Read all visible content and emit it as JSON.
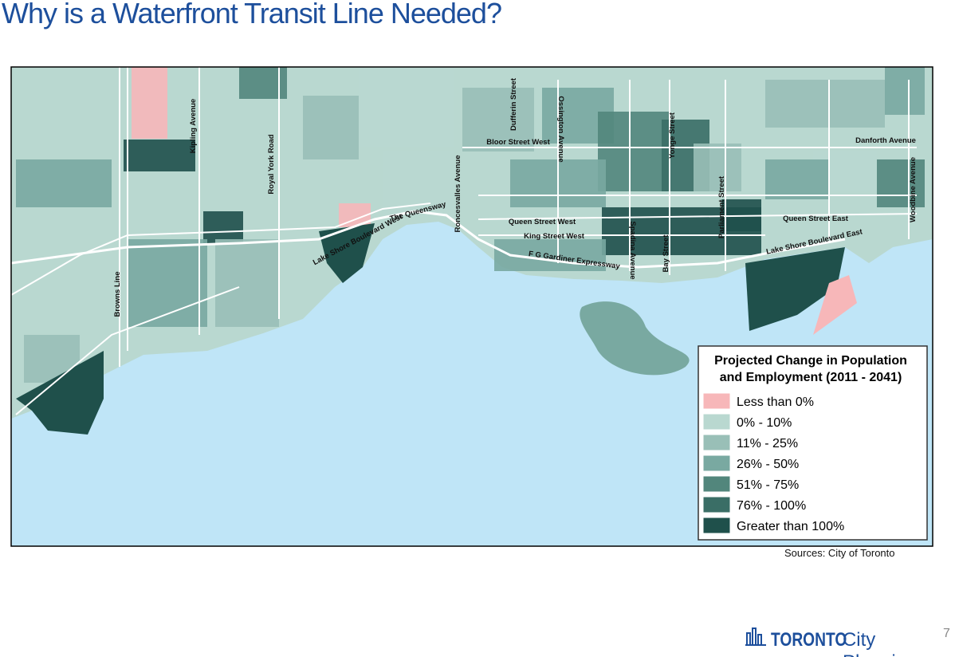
{
  "title": "Why is a Waterfront Transit Line Needed?",
  "map": {
    "labels": [
      "Kipling Avenue",
      "Royal York Road",
      "Browns Line",
      "The Queensway",
      "Lake Shore Boulevard West",
      "Roncesvalles Avenue",
      "Dufferin Street",
      "Ossington Avenue",
      "Bloor Street West",
      "Queen Street West",
      "King Street West",
      "F G Gardiner Expressway",
      "Spadina Avenue",
      "Bay Street",
      "Yonge Street",
      "Parliament Street",
      "Queen Street East",
      "Lake Shore Boulevard East",
      "Danforth Avenue",
      "Woodbine Avenue"
    ],
    "legend": {
      "title": [
        "Projected Change in Population",
        "and Employment (2011 - 2041)"
      ],
      "items": [
        {
          "label": "Less than 0%",
          "color": "#f7b7b9"
        },
        {
          "label": "0% - 10%",
          "color": "#b9d8d0"
        },
        {
          "label": "11% - 25%",
          "color": "#99bfb7"
        },
        {
          "label": "26% - 50%",
          "color": "#79a9a1"
        },
        {
          "label": "51% - 75%",
          "color": "#52867c"
        },
        {
          "label": "76% - 100%",
          "color": "#3a6e66"
        },
        {
          "label": "Greater than 100%",
          "color": "#1f504b"
        }
      ]
    }
  },
  "source": "Sources: City of Toronto",
  "logo": {
    "brand": "TORONTO",
    "unit": "City Planning"
  },
  "page_number": "7"
}
